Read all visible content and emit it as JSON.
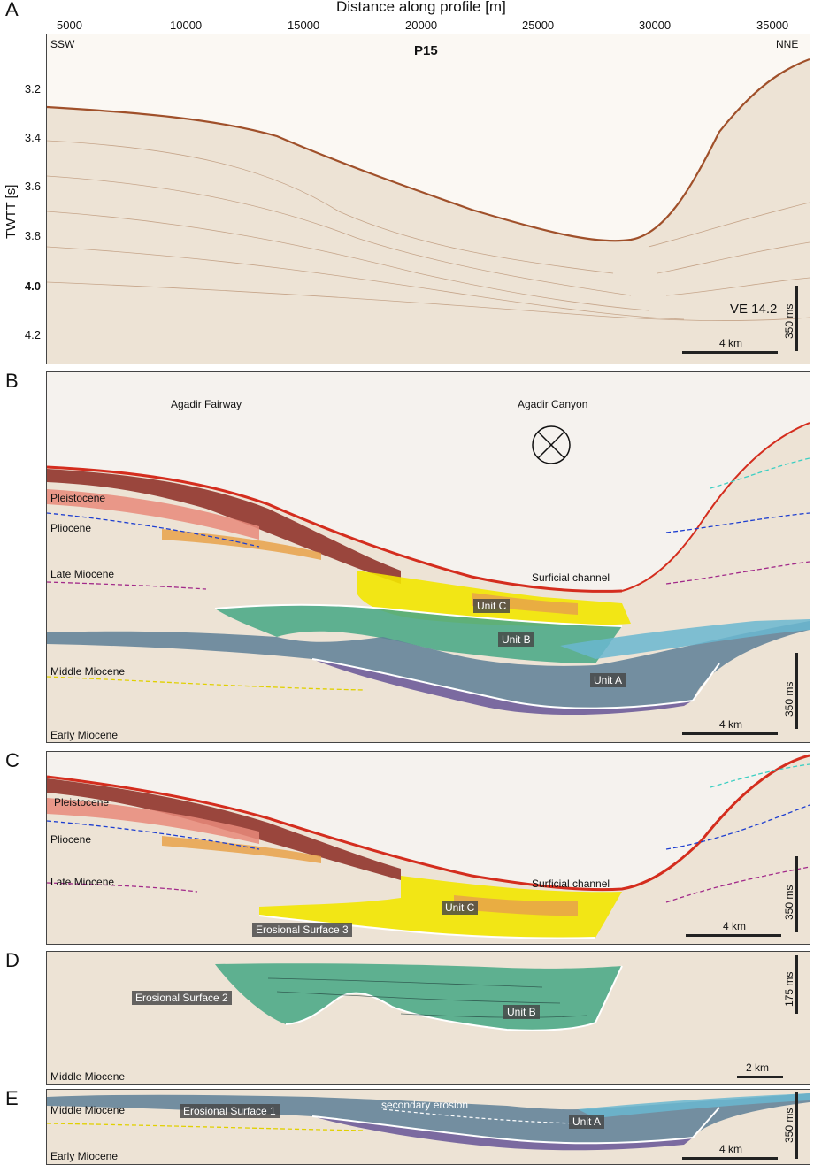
{
  "panels": {
    "a": {
      "letter": "A",
      "x_axis_title": "Distance along profile [m]",
      "x_ticks": [
        "5000",
        "10000",
        "15000",
        "20000",
        "25000",
        "30000",
        "35000"
      ],
      "y_axis_title": "TWTT [s]",
      "y_ticks": [
        "3.2",
        "3.4",
        "3.6",
        "3.8",
        "4.0",
        "4.2"
      ],
      "profile": "P15",
      "left_dir": "SSW",
      "right_dir": "NNE",
      "ve": "VE 14.2",
      "scale_v": "350 ms",
      "scale_h": "4 km"
    },
    "b": {
      "letter": "B",
      "fairway": "Agadir Fairway",
      "canyon": "Agadir Canyon",
      "pleistocene": "Pleistocene",
      "pliocene": "Pliocene",
      "late_miocene": "Late Miocene",
      "middle_miocene": "Middle Miocene",
      "early_miocene": "Early Miocene",
      "surficial": "Surficial channel",
      "unit_c": "Unit C",
      "unit_b": "Unit B",
      "unit_a": "Unit A",
      "scale_v": "350 ms",
      "scale_h": "4 km"
    },
    "c": {
      "letter": "C",
      "pleistocene": "Pleistocene",
      "pliocene": "Pliocene",
      "late_miocene": "Late Miocene",
      "surficial": "Surficial channel",
      "unit_c": "Unit C",
      "erosional": "Erosional Surface 3",
      "scale_v": "350 ms",
      "scale_h": "4 km"
    },
    "d": {
      "letter": "D",
      "erosional": "Erosional Surface 2",
      "middle_miocene": "Middle Miocene",
      "unit_b": "Unit B",
      "scale_v": "175 ms",
      "scale_h": "2 km"
    },
    "e": {
      "letter": "E",
      "middle_miocene": "Middle Miocene",
      "early_miocene": "Early Miocene",
      "erosional": "Erosional Surface 1",
      "secondary": "secondary erosion",
      "unit_a": "Unit A",
      "scale_v": "350 ms",
      "scale_h": "4 km"
    }
  },
  "colors": {
    "seismic_bg": "#ece4d8",
    "water": "#fbf8f3",
    "seafloor": "#a0502a",
    "red_layer": "#c0392b",
    "dark_red": "#8b2a22",
    "salmon": "#e88a7a",
    "orange": "#e8a24a",
    "yellow": "#f2e600",
    "green": "#4aa886",
    "teal": "#2f8f8a",
    "blue_grey": "#5d7f97",
    "purple": "#6e5c9a",
    "grey": "#6a6a6a",
    "light_blue": "#6ab7d0"
  }
}
